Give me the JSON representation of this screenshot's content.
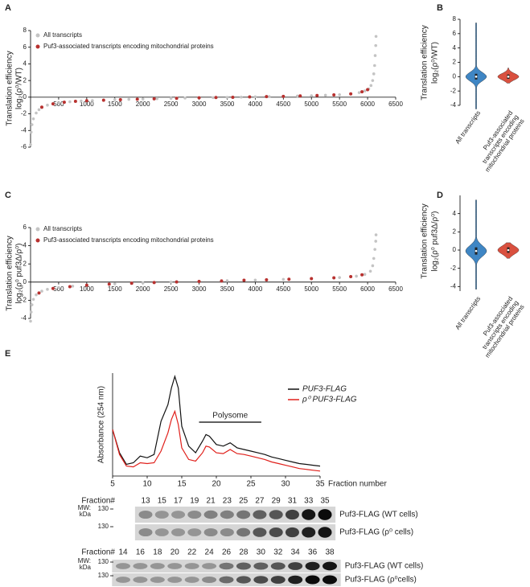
{
  "chart_data": [
    {
      "type": "scatter",
      "panel": "A",
      "ylabel": "Translation efficiency",
      "ylabel_sub": "log₂(ρ⁰/WT)",
      "xlim": [
        0,
        6500
      ],
      "xticks": [
        500,
        1000,
        1500,
        2000,
        2500,
        3000,
        3500,
        4000,
        4500,
        5000,
        5500,
        6000,
        6500
      ],
      "ylim": [
        -6,
        8
      ],
      "yticks": [
        -6,
        -4,
        -2,
        0,
        2,
        4,
        6,
        8
      ],
      "series": [
        {
          "name": "All transcripts",
          "color": "#c4c4c4",
          "x": [
            0,
            10,
            25,
            50,
            100,
            150,
            200,
            300,
            400,
            500,
            700,
            900,
            1100,
            1300,
            1500,
            1750,
            2000,
            2250,
            2500,
            2750,
            3000,
            3250,
            3500,
            3750,
            4000,
            4250,
            4500,
            4750,
            5000,
            5250,
            5500,
            5700,
            5850,
            5950,
            6020,
            6060,
            6090,
            6110,
            6125,
            6135,
            6145,
            6150
          ],
          "values": [
            -5.7,
            -4.2,
            -3.3,
            -2.6,
            -1.9,
            -1.5,
            -1.25,
            -0.95,
            -0.8,
            -0.7,
            -0.55,
            -0.45,
            -0.4,
            -0.35,
            -0.3,
            -0.26,
            -0.22,
            -0.18,
            -0.15,
            -0.11,
            -0.08,
            -0.05,
            -0.02,
            0.01,
            0.04,
            0.07,
            0.1,
            0.14,
            0.18,
            0.23,
            0.3,
            0.4,
            0.55,
            0.75,
            1.0,
            1.4,
            2.0,
            2.8,
            3.8,
            5.0,
            6.2,
            7.3
          ]
        },
        {
          "name": "Puf3-associated transcripts encoding mitochondrial proteins",
          "color": "#b8312f",
          "x": [
            200,
            400,
            600,
            800,
            1000,
            1300,
            1600,
            1900,
            2200,
            2600,
            3000,
            3300,
            3600,
            3900,
            4200,
            4500,
            4800,
            5100,
            5400,
            5700,
            5900,
            6000
          ],
          "values": [
            -1.2,
            -0.8,
            -0.6,
            -0.5,
            -0.42,
            -0.36,
            -0.3,
            -0.24,
            -0.19,
            -0.13,
            -0.08,
            -0.04,
            -0.01,
            0.03,
            0.07,
            0.1,
            0.15,
            0.2,
            0.27,
            0.4,
            0.65,
            0.9
          ]
        }
      ]
    },
    {
      "type": "violin",
      "panel": "B",
      "ylabel": "Translation efficiency",
      "ylabel_sub": "log₂(ρ⁰/WT)",
      "ylim": [
        -4,
        8
      ],
      "yticks": [
        -4,
        -2,
        0,
        2,
        4,
        6,
        8
      ],
      "categories": [
        "All transcripts",
        "Puf3-associated transcripts encoding mitochondrial proteins"
      ],
      "colors": [
        "#3f86c4",
        "#d9503f"
      ],
      "values": [
        0,
        0
      ],
      "q1": [
        -0.4,
        -0.3
      ],
      "q3": [
        0.4,
        0.3
      ],
      "mins": [
        -4.5,
        -0.9
      ],
      "maxs": [
        7.5,
        1.2
      ]
    },
    {
      "type": "scatter",
      "panel": "C",
      "ylabel": "Translation efficiency",
      "ylabel_sub": "log₂(ρ⁰ puf3Δ/ρ⁰)",
      "xlim": [
        0,
        6500
      ],
      "xticks": [
        500,
        1000,
        1500,
        2000,
        2500,
        3000,
        3500,
        4000,
        4500,
        5000,
        5500,
        6000,
        6500
      ],
      "ylim": [
        -4,
        6
      ],
      "yticks": [
        -4,
        -2,
        0,
        2,
        4,
        6
      ],
      "series": [
        {
          "name": "All transcripts",
          "color": "#c4c4c4",
          "x": [
            0,
            10,
            25,
            50,
            100,
            200,
            300,
            500,
            750,
            1000,
            1500,
            2000,
            2500,
            3000,
            3500,
            4000,
            4500,
            5000,
            5500,
            5800,
            5950,
            6050,
            6090,
            6110,
            6130,
            6145,
            6150
          ],
          "values": [
            -4.3,
            -3.3,
            -2.5,
            -1.9,
            -1.4,
            -1.0,
            -0.8,
            -0.6,
            -0.45,
            -0.35,
            -0.2,
            -0.1,
            0,
            0.07,
            0.15,
            0.22,
            0.3,
            0.38,
            0.5,
            0.65,
            0.85,
            1.2,
            1.8,
            2.6,
            3.6,
            4.5,
            5.2
          ]
        },
        {
          "name": "Puf3-associated transcripts encoding mitochondrial proteins",
          "color": "#b8312f",
          "x": [
            150,
            400,
            700,
            1000,
            1400,
            1800,
            2200,
            2600,
            3000,
            3400,
            3800,
            4200,
            4600,
            5000,
            5400,
            5700,
            5900
          ],
          "values": [
            -1.2,
            -0.7,
            -0.5,
            -0.35,
            -0.23,
            -0.13,
            -0.05,
            0.01,
            0.07,
            0.13,
            0.2,
            0.25,
            0.31,
            0.38,
            0.47,
            0.6,
            0.8
          ]
        }
      ]
    },
    {
      "type": "violin",
      "panel": "D",
      "ylabel": "Translation efficiency",
      "ylabel_sub": "log₂(ρ⁰ puf3Δ/ρ⁰)",
      "ylim": [
        -4.5,
        6
      ],
      "yticks": [
        -4,
        -2,
        0,
        2,
        4
      ],
      "categories": [
        "All transcripts",
        "Puf3-associated transcripts encoding mitochondrial proteins"
      ],
      "colors": [
        "#3f86c4",
        "#d9503f"
      ],
      "values": [
        -0.1,
        0
      ],
      "q1": [
        -0.5,
        -0.3
      ],
      "q3": [
        0.3,
        0.3
      ],
      "mins": [
        -4.3,
        -0.9
      ],
      "maxs": [
        5.5,
        0.8
      ]
    },
    {
      "type": "line",
      "panel": "E",
      "ylabel": "Absorbance (254 nm)",
      "xlabel": "Fraction number",
      "xlim": [
        5,
        35
      ],
      "xticks": [
        5,
        10,
        15,
        20,
        25,
        30,
        35
      ],
      "ylim": [
        0,
        6.2
      ],
      "annotation": "Polysome",
      "annotation_range": [
        17.5,
        26.5
      ],
      "x": [
        5,
        6,
        7,
        8,
        9,
        10,
        11,
        12,
        13,
        13.5,
        14,
        14.5,
        15,
        16,
        17,
        18,
        18.5,
        19,
        20,
        21,
        22,
        23,
        24,
        25,
        26,
        27,
        28,
        29,
        30,
        31,
        32,
        33,
        34,
        35
      ],
      "series": [
        {
          "name": "PUF3-FLAG",
          "color": "#111111",
          "values": [
            2.8,
            1.4,
            0.7,
            0.8,
            1.2,
            1.1,
            1.3,
            3.3,
            4.3,
            5.3,
            6.0,
            5.3,
            3.0,
            1.8,
            1.4,
            2.1,
            2.5,
            2.4,
            1.9,
            1.8,
            2.0,
            1.7,
            1.6,
            1.5,
            1.4,
            1.3,
            1.15,
            1.05,
            0.95,
            0.85,
            0.75,
            0.7,
            0.65,
            0.6
          ]
        },
        {
          "name": "ρ⁰ PUF3-FLAG",
          "color": "#e0201b",
          "values": [
            2.8,
            1.3,
            0.6,
            0.55,
            0.8,
            0.75,
            0.8,
            1.5,
            2.6,
            3.4,
            3.9,
            3.1,
            1.7,
            1.0,
            0.9,
            1.4,
            1.8,
            1.75,
            1.4,
            1.35,
            1.6,
            1.35,
            1.3,
            1.2,
            1.1,
            1.0,
            0.85,
            0.75,
            0.65,
            0.55,
            0.45,
            0.4,
            0.35,
            0.3
          ]
        }
      ]
    }
  ],
  "blots": [
    {
      "fraction_label": "Fraction#",
      "fractions": [
        13,
        15,
        17,
        19,
        21,
        23,
        25,
        27,
        29,
        31,
        33,
        35
      ],
      "mw_label": "MW:",
      "mw_unit": "kDa",
      "rows": [
        {
          "marker": 130,
          "label": "Puf3-FLAG (WT cells)",
          "intensity": [
            0.35,
            0.3,
            0.3,
            0.35,
            0.4,
            0.4,
            0.45,
            0.55,
            0.6,
            0.7,
            0.9,
            0.95
          ]
        },
        {
          "marker": 130,
          "label": "Puf3-FLAG (ρ⁰ cells)",
          "intensity": [
            0.35,
            0.3,
            0.3,
            0.3,
            0.35,
            0.35,
            0.45,
            0.6,
            0.65,
            0.7,
            0.85,
            0.9
          ]
        }
      ]
    },
    {
      "fraction_label": "Fraction#",
      "fractions": [
        14,
        16,
        18,
        20,
        22,
        24,
        26,
        28,
        30,
        32,
        34,
        36,
        38
      ],
      "mw_label": "MW:",
      "mw_unit": "kDa",
      "rows": [
        {
          "marker": 130,
          "label": "Puf3-FLAG (WT cells)",
          "intensity": [
            0.3,
            0.3,
            0.3,
            0.3,
            0.3,
            0.3,
            0.45,
            0.55,
            0.55,
            0.6,
            0.7,
            0.85,
            0.9
          ]
        },
        {
          "marker": 130,
          "label": "Puf3-FLAG (ρ⁰cells)",
          "intensity": [
            0.3,
            0.3,
            0.3,
            0.3,
            0.3,
            0.35,
            0.5,
            0.6,
            0.65,
            0.7,
            0.85,
            0.95,
            0.95
          ]
        }
      ]
    }
  ]
}
